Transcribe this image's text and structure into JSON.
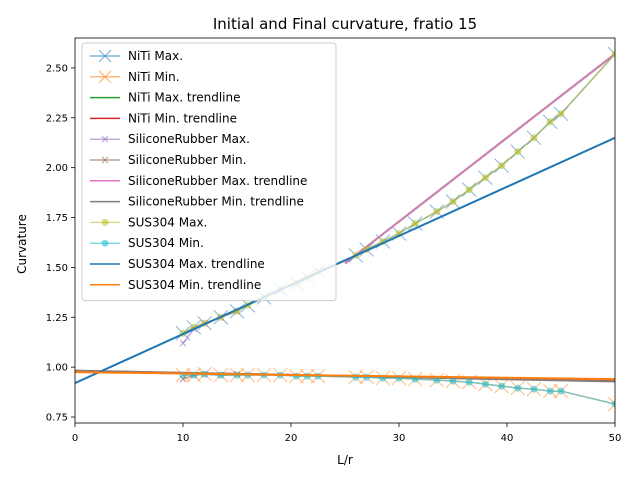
{
  "chart_data": {
    "type": "line",
    "title": "Initial and Final curvature, fratio 15",
    "xlabel": "L/r",
    "ylabel": "Curvature",
    "xlim": [
      0,
      50
    ],
    "ylim": [
      0.72,
      2.65
    ],
    "xticks": [
      0,
      10,
      20,
      30,
      40,
      50
    ],
    "yticks": [
      0.75,
      1.0,
      1.25,
      1.5,
      1.75,
      2.0,
      2.25,
      2.5
    ],
    "xtick_labels": [
      "0",
      "10",
      "20",
      "30",
      "40",
      "50"
    ],
    "ytick_labels": [
      "0.75",
      "1.00",
      "1.25",
      "1.50",
      "1.75",
      "2.00",
      "2.25",
      "2.50"
    ],
    "grid": false,
    "legend_position": "upper-left",
    "legend": [
      {
        "label": "NiTi Max.",
        "color": "#1f77b4",
        "marker": "x",
        "line": true
      },
      {
        "label": "NiTi Min.",
        "color": "#ff7f0e",
        "marker": "x",
        "line": true
      },
      {
        "label": "NiTi Max. trendline",
        "color": "#2ca02c",
        "marker": "none",
        "line": true
      },
      {
        "label": "NiTi Min. trendline",
        "color": "#d62728",
        "marker": "none",
        "line": true
      },
      {
        "label": "SiliconeRubber Max.",
        "color": "#9467bd",
        "marker": "x",
        "line": true
      },
      {
        "label": "SiliconeRubber Min.",
        "color": "#8c564b",
        "marker": "x",
        "line": true
      },
      {
        "label": "SiliconeRubber Max. trendline",
        "color": "#e377c2",
        "marker": "none",
        "line": true
      },
      {
        "label": "SiliconeRubber Min. trendline",
        "color": "#7f7f7f",
        "marker": "none",
        "line": true
      },
      {
        "label": "SUS304 Max.",
        "color": "#bcbd22",
        "marker": "o",
        "line": true
      },
      {
        "label": "SUS304 Min.",
        "color": "#17becf",
        "marker": "o",
        "line": true
      },
      {
        "label": "SUS304 Max. trendline",
        "color": "#1f77b4",
        "marker": "none",
        "line": true
      },
      {
        "label": "SUS304 Min. trendline",
        "color": "#ff7f0e",
        "marker": "none",
        "line": true
      }
    ],
    "series": [
      {
        "name": "NiTi Max.",
        "color": "#1f77b4",
        "marker": "x",
        "marker_size": 7,
        "alpha": 0.45,
        "x": [
          10,
          11,
          12,
          13.5,
          15,
          16,
          17.5,
          19,
          20.5,
          21.5,
          22.5,
          26,
          27,
          28.5,
          30,
          31.5,
          33.5,
          35,
          36.5,
          38,
          39.5,
          41,
          42.5,
          44,
          45,
          50
        ],
        "y": [
          1.17,
          1.2,
          1.22,
          1.25,
          1.28,
          1.31,
          1.35,
          1.39,
          1.42,
          1.45,
          1.48,
          1.56,
          1.59,
          1.63,
          1.67,
          1.72,
          1.78,
          1.83,
          1.89,
          1.95,
          2.01,
          2.08,
          2.15,
          2.23,
          2.27,
          2.57
        ]
      },
      {
        "name": "NiTi Min.",
        "color": "#ff7f0e",
        "marker": "x",
        "marker_size": 7,
        "alpha": 0.45,
        "x": [
          10,
          11,
          12,
          13.5,
          15,
          16,
          17.5,
          19,
          20.5,
          21.5,
          22.5,
          26,
          27,
          28.5,
          30,
          31.5,
          33.5,
          35,
          36.5,
          38,
          39.5,
          41,
          42.5,
          44,
          45,
          50
        ],
        "y": [
          0.96,
          0.96,
          0.965,
          0.96,
          0.96,
          0.96,
          0.96,
          0.96,
          0.955,
          0.955,
          0.955,
          0.95,
          0.95,
          0.945,
          0.945,
          0.94,
          0.935,
          0.93,
          0.925,
          0.915,
          0.905,
          0.895,
          0.89,
          0.88,
          0.88,
          0.815
        ]
      },
      {
        "name": "NiTi Max. trendline",
        "color": "#2ca02c",
        "marker": "none",
        "alpha": 0.9,
        "width": 2,
        "x": [
          25,
          50
        ],
        "y": [
          1.52,
          2.57
        ]
      },
      {
        "name": "NiTi Min. trendline",
        "color": "#d62728",
        "marker": "none",
        "alpha": 0.9,
        "width": 2,
        "x": [
          0,
          50
        ],
        "y": [
          0.982,
          0.93
        ]
      },
      {
        "name": "SiliconeRubber Max.",
        "color": "#9467bd",
        "marker": "x",
        "marker_size": 3,
        "alpha": 0.55,
        "x": [
          10,
          11,
          12,
          13.5,
          15
        ],
        "y": [
          1.12,
          1.19,
          1.22,
          1.25,
          1.28
        ]
      },
      {
        "name": "SiliconeRubber Min.",
        "color": "#8c564b",
        "marker": "x",
        "marker_size": 3,
        "alpha": 0.55,
        "x": [
          10,
          11,
          12,
          13.5,
          15
        ],
        "y": [
          0.94,
          0.96,
          0.965,
          0.96,
          0.965
        ]
      },
      {
        "name": "SiliconeRubber Max. trendline",
        "color": "#e377c2",
        "marker": "none",
        "alpha": 0.9,
        "width": 2,
        "x": [
          25,
          50
        ],
        "y": [
          1.52,
          2.57
        ]
      },
      {
        "name": "SiliconeRubber Min. trendline",
        "color": "#7f7f7f",
        "marker": "none",
        "alpha": 0.9,
        "width": 2,
        "x": [
          0,
          50
        ],
        "y": [
          0.982,
          0.928
        ]
      },
      {
        "name": "SUS304 Max.",
        "color": "#bcbd22",
        "marker": "o",
        "marker_size": 3.5,
        "alpha": 0.55,
        "x": [
          10,
          11,
          12,
          13.5,
          15,
          16,
          17.5,
          19,
          20.5,
          21.5,
          22.5,
          26,
          27,
          28.5,
          30,
          31.5,
          33.5,
          35,
          36.5,
          38,
          39.5,
          41,
          42.5,
          44,
          45,
          50
        ],
        "y": [
          1.17,
          1.2,
          1.22,
          1.25,
          1.28,
          1.31,
          1.35,
          1.39,
          1.42,
          1.45,
          1.48,
          1.56,
          1.59,
          1.63,
          1.67,
          1.72,
          1.78,
          1.83,
          1.89,
          1.95,
          2.01,
          2.08,
          2.15,
          2.23,
          2.27,
          2.57
        ]
      },
      {
        "name": "SUS304 Min.",
        "color": "#17becf",
        "marker": "o",
        "marker_size": 3.5,
        "alpha": 0.55,
        "x": [
          10,
          11,
          12,
          13.5,
          15,
          16,
          17.5,
          19,
          20.5,
          21.5,
          22.5,
          26,
          27,
          28.5,
          30,
          31.5,
          33.5,
          35,
          36.5,
          38,
          39.5,
          41,
          42.5,
          44,
          45,
          50
        ],
        "y": [
          0.96,
          0.96,
          0.965,
          0.96,
          0.96,
          0.96,
          0.96,
          0.96,
          0.955,
          0.955,
          0.955,
          0.95,
          0.95,
          0.945,
          0.945,
          0.94,
          0.935,
          0.93,
          0.925,
          0.915,
          0.905,
          0.895,
          0.89,
          0.88,
          0.88,
          0.815
        ]
      },
      {
        "name": "SUS304 Max. trendline",
        "color": "#1f77b4",
        "marker": "none",
        "alpha": 1,
        "width": 2,
        "x": [
          0,
          50
        ],
        "y": [
          0.92,
          2.15
        ]
      },
      {
        "name": "SUS304 Min. trendline",
        "color": "#ff7f0e",
        "marker": "none",
        "alpha": 1,
        "width": 2,
        "x": [
          0,
          50
        ],
        "y": [
          0.975,
          0.94
        ]
      }
    ]
  }
}
